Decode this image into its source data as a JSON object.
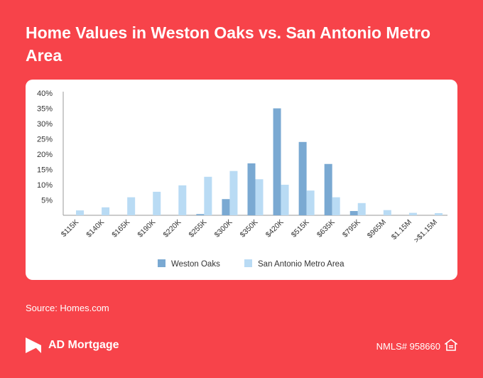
{
  "title": "Home Values in Weston Oaks vs. San Antonio Metro Area",
  "source": "Source: Homes.com",
  "brand": {
    "name": "AD Mortgage",
    "logo_icon": "ad-mortgage-logo-icon"
  },
  "footer": {
    "nmls": "NMLS# 958660",
    "housing_icon": "equal-housing-icon"
  },
  "colors": {
    "background": "#f7434a",
    "weston": "#7aa9d2",
    "sanantonio": "#b9dbf4"
  },
  "chart_data": {
    "type": "bar",
    "title": "Home Values in Weston Oaks vs. San Antonio Metro Area",
    "xlabel": "",
    "ylabel": "",
    "ylim": [
      0,
      40
    ],
    "yticks": [
      "5%",
      "10%",
      "15%",
      "20%",
      "25%",
      "30%",
      "35%",
      "40%"
    ],
    "categories": [
      "$115K",
      "$140K",
      "$165K",
      "$190K",
      "$220K",
      "$255K",
      "$300K",
      "$350K",
      "$420K",
      "$515K",
      "$635K",
      "$795K",
      "$965M",
      "$1.15M",
      ">$1.15M"
    ],
    "series": [
      {
        "name": "Weston Oaks",
        "values": [
          0,
          0,
          0,
          0,
          0,
          0.4,
          5.3,
          17,
          35,
          24,
          16.8,
          1.4,
          0,
          0,
          0
        ]
      },
      {
        "name": "San Antonio Metro Area",
        "values": [
          1.6,
          2.6,
          5.9,
          7.7,
          9.8,
          12.6,
          14.5,
          11.8,
          10,
          8.1,
          5.9,
          4,
          1.7,
          0.8,
          0.7
        ]
      }
    ],
    "legend": "bottom-center",
    "grid": false
  }
}
